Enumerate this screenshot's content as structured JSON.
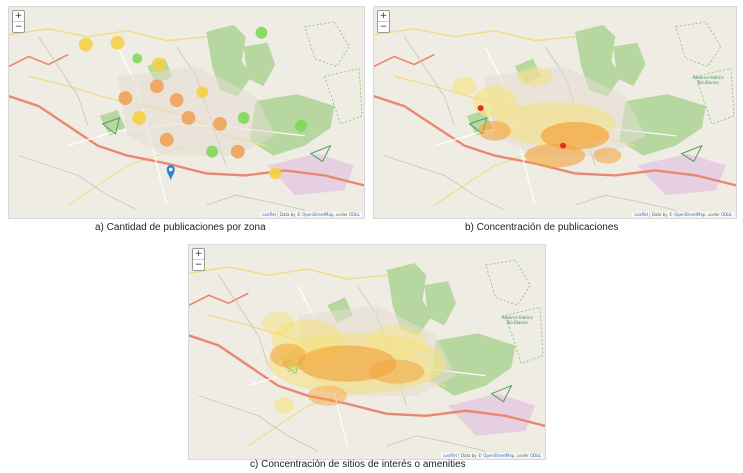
{
  "zoom": {
    "in_label": "+",
    "out_label": "−"
  },
  "attribution": {
    "leaflet": "Leaflet",
    "data": " | Data by © ",
    "osm": "OpenStreetMap",
    "under": ", under ",
    "odbl": "ODbL"
  },
  "map_labels": {
    "reserve": "Reserva hídrica Río Blanco"
  },
  "captions": {
    "a": "a) Cantidad de publicaciones por zona",
    "b": "b) Concentración de publicaciones",
    "c": "c) Concentración de sitios de interés o amenities"
  },
  "colors": {
    "cluster_small": "#7ed957",
    "cluster_medium": "#f4d03f",
    "cluster_large": "#f0a25a",
    "heat_low": "#f6e27a",
    "heat_mid": "#f3a43b",
    "heat_high": "#e0301e",
    "forest": "#b6d7a0",
    "highway": "#e98870",
    "marker": "#2f7fcf"
  }
}
